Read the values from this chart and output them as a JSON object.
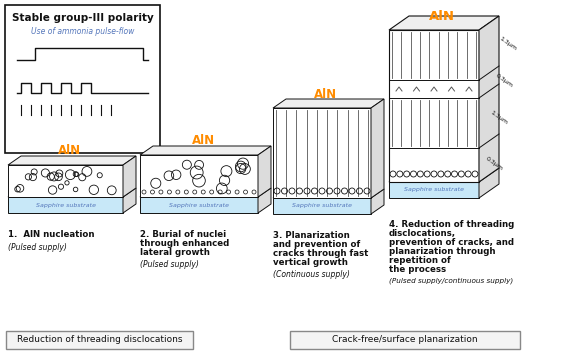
{
  "title": "Stable group-III polarity",
  "subtitle": "Use of ammonia pulse-flow",
  "aln_label": "AlN",
  "sapphire_label": "Sapphire substrate",
  "step1_line1": "1.  AlN nucleation",
  "step1_supply": "(Pulsed supply)",
  "step2_line1": "2. Burial of nuclei",
  "step2_line2": "through enhanced",
  "step2_line3": "lateral growth",
  "step2_supply": "(Pulsed supply)",
  "step3_line1": "3. Planarization",
  "step3_line2": "and prevention of",
  "step3_line3": "cracks through fast",
  "step3_line4": "vertical growth",
  "step3_supply": "(Continuous supply)",
  "step4_line1": "4. Reduction of threading",
  "step4_line2": "disclocations,",
  "step4_line3": "prevention of cracks, and",
  "step4_line4": "planarization through",
  "step4_line5": "repetition of",
  "step4_line6": "the process",
  "step4_supply": "(Pulsed supply/continuous supply)",
  "box1_label": "Reduction of threading disclocations",
  "box2_label": "Crack-free/surface planarization",
  "dim_labels": [
    "1.3μm",
    "0.3μm",
    "1.3μm",
    "0.3μm"
  ],
  "orange": "#FF8C00",
  "blue": "#5577BB",
  "black": "#111111",
  "lightblue": "#C8E8F8",
  "bg": "#FFFFFF",
  "fig_w": 5.72,
  "fig_h": 3.53,
  "dpi": 100
}
